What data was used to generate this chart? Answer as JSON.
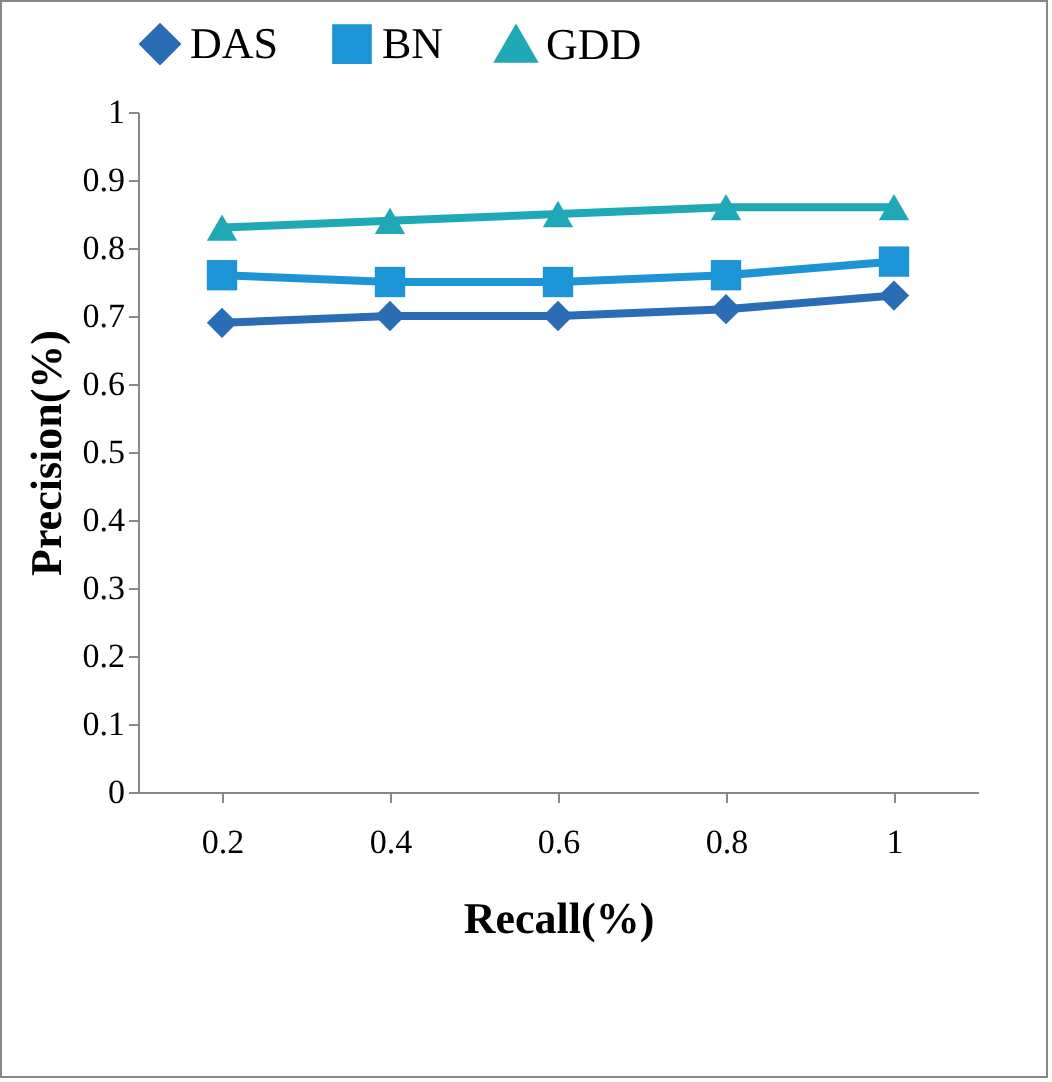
{
  "chart_data": {
    "type": "line",
    "xlabel": "Recall(%)",
    "ylabel": "Precision(%)",
    "categories": [
      "0.2",
      "0.4",
      "0.6",
      "0.8",
      "1"
    ],
    "series": [
      {
        "name": "DAS",
        "color": "#2a6db5",
        "marker": "diamond",
        "values": [
          0.69,
          0.7,
          0.7,
          0.71,
          0.73
        ]
      },
      {
        "name": "BN",
        "color": "#1c94d6",
        "marker": "square",
        "values": [
          0.76,
          0.75,
          0.75,
          0.76,
          0.78
        ]
      },
      {
        "name": "GDD",
        "color": "#1fa8b6",
        "marker": "triangle",
        "values": [
          0.83,
          0.84,
          0.85,
          0.86,
          0.86
        ]
      }
    ],
    "ylim": [
      0,
      1
    ],
    "yticks": [
      0,
      0.1,
      0.2,
      0.3,
      0.4,
      0.5,
      0.6,
      0.7,
      0.8,
      0.9,
      1
    ],
    "grid": false,
    "legend": "top"
  }
}
